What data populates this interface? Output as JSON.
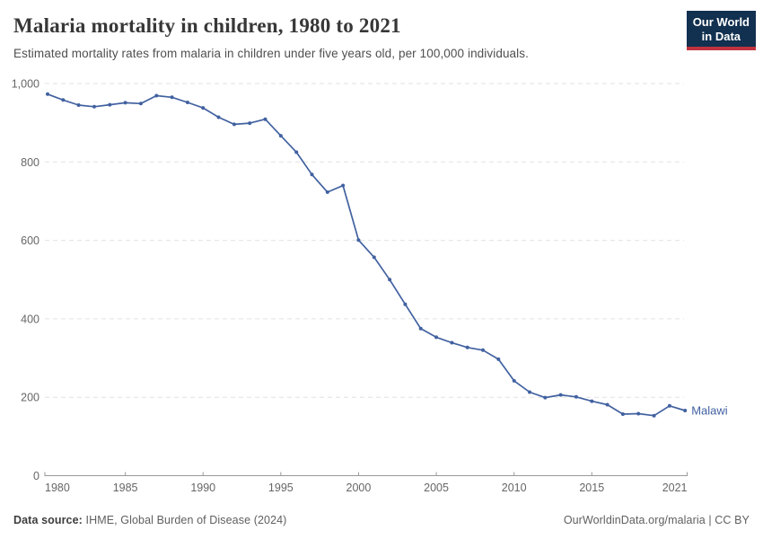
{
  "header": {
    "title": "Malaria mortality in children, 1980 to 2021",
    "subtitle": "Estimated mortality rates from malaria in children under five years old, per 100,000 individuals.",
    "logo": {
      "line1": "Our World",
      "line2": "in Data"
    }
  },
  "chart_data": {
    "type": "line",
    "title": "Malaria mortality in children, 1980 to 2021",
    "x": [
      1980,
      1981,
      1982,
      1983,
      1984,
      1985,
      1986,
      1987,
      1988,
      1989,
      1990,
      1991,
      1992,
      1993,
      1994,
      1995,
      1996,
      1997,
      1998,
      1999,
      2000,
      2001,
      2002,
      2003,
      2004,
      2005,
      2006,
      2007,
      2008,
      2009,
      2010,
      2011,
      2012,
      2013,
      2014,
      2015,
      2016,
      2017,
      2018,
      2019,
      2020,
      2021
    ],
    "series": [
      {
        "name": "Malawi",
        "color": "#4161a0",
        "values": [
          973,
          958,
          945,
          941,
          946,
          951,
          949,
          969,
          965,
          952,
          938,
          914,
          896,
          899,
          909,
          867,
          825,
          768,
          723,
          740,
          601,
          557,
          500,
          437,
          375,
          353,
          339,
          327,
          320,
          297,
          242,
          213,
          199,
          206,
          201,
          190,
          181,
          157,
          158,
          153,
          178,
          166
        ]
      }
    ],
    "xlabel": "",
    "ylabel": "",
    "xlim": [
      1980,
      2021
    ],
    "ylim": [
      0,
      1000
    ],
    "yticks": [
      0,
      200,
      400,
      600,
      800,
      1000
    ],
    "ytick_labels": [
      "0",
      "200",
      "400",
      "600",
      "800",
      "1,000"
    ],
    "xticks": [
      1980,
      1985,
      1990,
      1995,
      2000,
      2005,
      2010,
      2015,
      2021
    ],
    "grid": "horizontal-dashed",
    "legend_position": "line-end-label"
  },
  "colors": {
    "line": "#4161a0",
    "grid": "#e2e2e2",
    "axis": "#999999",
    "axis_text": "#666666",
    "logo_bg": "#12304f",
    "logo_stripe": "#c0333e"
  },
  "footer": {
    "source_label": "Data source:",
    "source_value": "IHME, Global Burden of Disease (2024)",
    "attribution": "OurWorldinData.org/malaria | CC BY"
  }
}
